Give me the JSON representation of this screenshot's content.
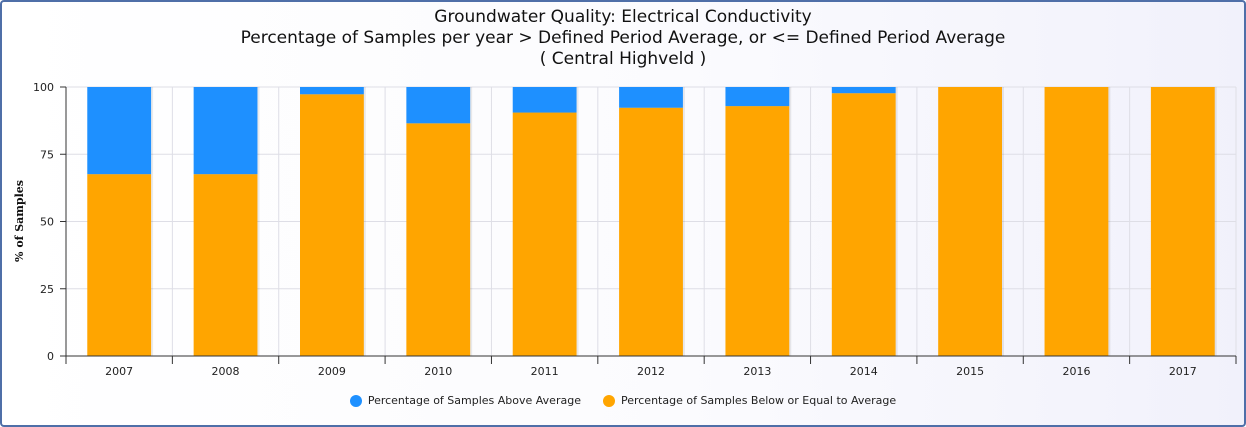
{
  "colors": {
    "above": "#1e90ff",
    "below": "#ffa500"
  },
  "chart_data": {
    "type": "bar",
    "stacked": true,
    "title": "Groundwater Quality: Electrical Conductivity",
    "subtitle": "Percentage of Samples per year > Defined Period Average, or <= Defined Period Average",
    "region": "( Central Highveld )",
    "ylabel": "% of Samples",
    "xlabel": "",
    "ylim": [
      0,
      100
    ],
    "yticks": [
      0,
      25,
      50,
      75,
      100
    ],
    "grid": true,
    "legend_position": "bottom-center",
    "categories": [
      "2007",
      "2008",
      "2009",
      "2010",
      "2011",
      "2012",
      "2013",
      "2014",
      "2015",
      "2016",
      "2017"
    ],
    "series": [
      {
        "name": "Percentage of Samples Below or Equal to Average",
        "color": "#ffa500",
        "values": [
          67.6,
          67.6,
          97.3,
          86.5,
          90.5,
          92.3,
          92.9,
          97.7,
          100,
          100,
          100
        ]
      },
      {
        "name": "Percentage of Samples Above Average",
        "color": "#1e90ff",
        "values": [
          32.4,
          32.4,
          2.7,
          13.5,
          9.5,
          7.7,
          7.1,
          2.3,
          0,
          0,
          0
        ]
      }
    ]
  }
}
